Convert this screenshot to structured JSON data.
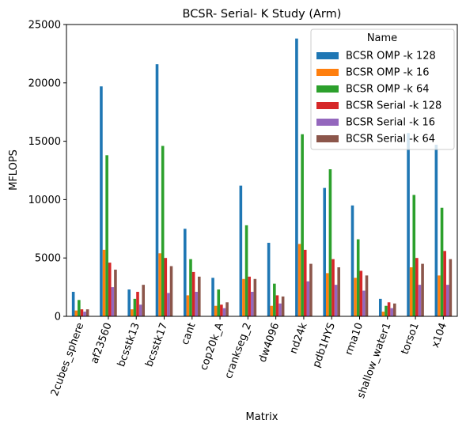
{
  "chart_data": {
    "type": "bar",
    "title": "BCSR- Serial- K Study (Arm)",
    "xlabel": "Matrix",
    "ylabel": "MFLOPS",
    "ylim": [
      0,
      25000
    ],
    "yticks": [
      0,
      5000,
      10000,
      15000,
      20000,
      25000
    ],
    "grid": false,
    "legend": {
      "title": "Name",
      "placement": "top-right"
    },
    "categories": [
      "2cubes_sphere",
      "af23560",
      "bcsstk13",
      "bcsstk17",
      "cant",
      "cop20k_A",
      "crankseg_2",
      "dw4096",
      "nd24k",
      "pdb1HYS",
      "rma10",
      "shallow_water1",
      "torso1",
      "x104"
    ],
    "series": [
      {
        "name": "BCSR OMP -k 128",
        "color": "#1f77b4",
        "values": [
          2100,
          19700,
          2300,
          21600,
          7500,
          3300,
          11200,
          6300,
          23800,
          11000,
          9500,
          1500,
          15700,
          14700
        ]
      },
      {
        "name": "BCSR OMP -k 16",
        "color": "#ff7f0e",
        "values": [
          500,
          5700,
          600,
          5400,
          1800,
          900,
          3200,
          900,
          6200,
          3700,
          3300,
          400,
          4200,
          3500
        ]
      },
      {
        "name": "BCSR OMP -k 64",
        "color": "#2ca02c",
        "values": [
          1400,
          13800,
          1500,
          14600,
          4900,
          2300,
          7800,
          2800,
          15600,
          12600,
          6600,
          900,
          10400,
          9300
        ]
      },
      {
        "name": "BCSR Serial -k 128",
        "color": "#d62728",
        "values": [
          600,
          4600,
          2100,
          5000,
          3800,
          1000,
          3400,
          1800,
          5700,
          4900,
          3900,
          1200,
          5000,
          5600
        ]
      },
      {
        "name": "BCSR Serial -k 16",
        "color": "#9467bd",
        "values": [
          400,
          2500,
          1000,
          2000,
          2100,
          700,
          2100,
          1100,
          3000,
          2700,
          2200,
          700,
          2700,
          2700
        ]
      },
      {
        "name": "BCSR Serial -k 64",
        "color": "#8c564b",
        "values": [
          600,
          4000,
          2700,
          4300,
          3400,
          1200,
          3200,
          1700,
          4500,
          4200,
          3500,
          1100,
          4500,
          4900
        ]
      }
    ]
  }
}
